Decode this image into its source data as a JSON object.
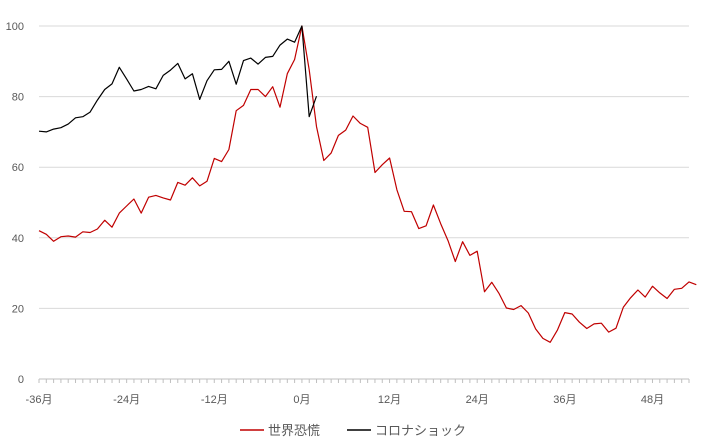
{
  "chart_data": {
    "type": "line",
    "title": "",
    "xlabel": "",
    "ylabel": "",
    "xlim": [
      -36,
      53
    ],
    "ylim": [
      0,
      100
    ],
    "grid": true,
    "legend_position": "bottom",
    "x_ticks": [
      {
        "value": -36,
        "label": "-36月"
      },
      {
        "value": -24,
        "label": "-24月"
      },
      {
        "value": -12,
        "label": "-12月"
      },
      {
        "value": 0,
        "label": "0月"
      },
      {
        "value": 12,
        "label": "12月"
      },
      {
        "value": 24,
        "label": "24月"
      },
      {
        "value": 36,
        "label": "36月"
      },
      {
        "value": 48,
        "label": "48月"
      }
    ],
    "y_ticks": [
      {
        "value": 0,
        "label": "0"
      },
      {
        "value": 20,
        "label": "20"
      },
      {
        "value": 40,
        "label": "40"
      },
      {
        "value": 60,
        "label": "60"
      },
      {
        "value": 80,
        "label": "80"
      },
      {
        "value": 100,
        "label": "100"
      }
    ],
    "series": [
      {
        "name": "世界恐慌",
        "color": "#c00000",
        "x_start": -36,
        "values": [
          42,
          41,
          39,
          40.3,
          40.5,
          40.2,
          41.7,
          41.5,
          42.5,
          45,
          43,
          47,
          49,
          51,
          47,
          51.5,
          52,
          51.3,
          50.7,
          55.7,
          54.9,
          57,
          54.7,
          56,
          62.5,
          61.6,
          65,
          76,
          77.5,
          82,
          82,
          80,
          82.8,
          77,
          86.5,
          90.5,
          100,
          87.6,
          71.5,
          61.9,
          64,
          69,
          70.5,
          74.5,
          72.4,
          71.3,
          58.5,
          60.7,
          62.6,
          53.6,
          47.5,
          47.4,
          42.6,
          43.4,
          49.3,
          44,
          39.2,
          33.3,
          38.9,
          35,
          36.2,
          24.7,
          27.4,
          24.2,
          20.1,
          19.7,
          20.8,
          18.7,
          14.2,
          11.5,
          10.4,
          13.9,
          18.8,
          18.4,
          16.1,
          14.3,
          15.6,
          15.8,
          13.3,
          14.4,
          20.3,
          23,
          25.2,
          23.2,
          26.3,
          24.4,
          22.8,
          25.4,
          25.7,
          27.5,
          26.7
        ]
      },
      {
        "name": "コロナショック",
        "color": "#000000",
        "x_start": -36,
        "values": [
          70.2,
          70,
          70.8,
          71.2,
          72.2,
          74,
          74.3,
          75.6,
          79,
          82,
          83.6,
          88.3,
          85,
          81.6,
          82,
          82.9,
          82.2,
          86,
          87.5,
          89.4,
          85,
          86.5,
          79.2,
          84.5,
          87.6,
          87.7,
          90,
          83.5,
          90.2,
          90.9,
          89.2,
          91.1,
          91.4,
          94.6,
          96.3,
          95.4,
          100,
          74.3,
          80.1
        ]
      }
    ]
  }
}
